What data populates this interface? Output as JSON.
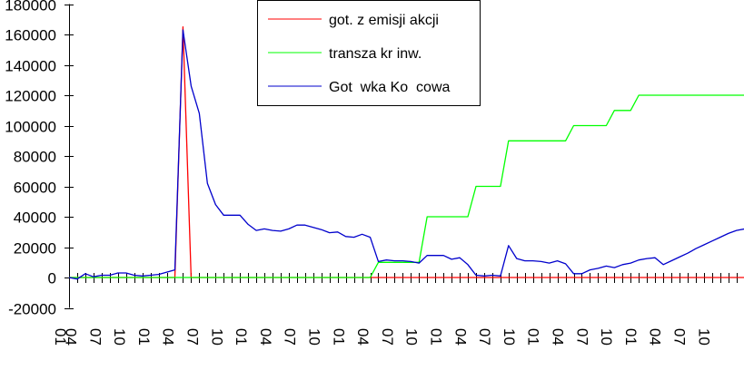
{
  "chart_data": {
    "type": "line",
    "title": "",
    "xlabel": "",
    "ylabel": "",
    "ylim": [
      -20000,
      180000
    ],
    "yticks": [
      180000,
      160000,
      140000,
      120000,
      100000,
      80000,
      60000,
      40000,
      20000,
      0,
      -20000
    ],
    "ytick_labels": [
      "180000",
      "160000",
      "140000",
      "120000",
      "100000",
      "80000",
      "60000",
      "40000",
      "20000",
      "0",
      "-20000"
    ],
    "x_count": 84,
    "xtick_labels": [
      "01",
      "04",
      "07",
      "10",
      "01",
      "04",
      "07",
      "10",
      "01",
      "04",
      "07",
      "10",
      "01",
      "04",
      "07",
      "10",
      "01",
      "04",
      "07",
      "10",
      "01",
      "04",
      "07",
      "10",
      "01",
      "04",
      "07",
      "10"
    ],
    "grid": false,
    "legend_position": "top-center",
    "legend": [
      "got. z emisji akcji",
      "transza kr inw.",
      "Got  wka Ko  cowa"
    ],
    "series": [
      {
        "name": "got. z emisji akcji",
        "color": "#ff0000",
        "values": [
          0,
          0,
          0,
          0,
          0,
          0,
          0,
          0,
          0,
          0,
          0,
          0,
          0,
          0,
          165000,
          0,
          0,
          0,
          0,
          0,
          0,
          0,
          0,
          0,
          0,
          0,
          0,
          0,
          0,
          0,
          0,
          0,
          0,
          0,
          0,
          0,
          0,
          0,
          0,
          0,
          0,
          0,
          0,
          0,
          0,
          0,
          0,
          0,
          0,
          0,
          0,
          0,
          0,
          0,
          0,
          0,
          0,
          0,
          0,
          0,
          0,
          0,
          0,
          0,
          0,
          0,
          0,
          0,
          0,
          0,
          0,
          0,
          0,
          0,
          0,
          0,
          0,
          0,
          0,
          0,
          0,
          0,
          0,
          0
        ]
      },
      {
        "name": "transza kr inw.",
        "color": "#00ff00",
        "values": [
          0,
          0,
          0,
          0,
          0,
          0,
          0,
          0,
          0,
          0,
          0,
          0,
          0,
          0,
          0,
          0,
          0,
          0,
          0,
          0,
          0,
          0,
          0,
          0,
          0,
          0,
          0,
          0,
          0,
          0,
          0,
          0,
          0,
          0,
          0,
          0,
          0,
          0,
          10000,
          10000,
          10000,
          10000,
          10000,
          10000,
          40000,
          40000,
          40000,
          40000,
          40000,
          40000,
          60000,
          60000,
          60000,
          60000,
          90000,
          90000,
          90000,
          90000,
          90000,
          90000,
          90000,
          90000,
          100000,
          100000,
          100000,
          100000,
          100000,
          110000,
          110000,
          110000,
          120000,
          120000,
          120000,
          120000,
          120000,
          120000,
          120000,
          120000,
          120000,
          120000,
          120000,
          120000,
          120000,
          120000
        ]
      },
      {
        "name": "Got  wka Ko  cowa",
        "color": "#0000cc",
        "values": [
          0,
          -1000,
          2500,
          500,
          1500,
          1500,
          3000,
          3000,
          1500,
          1000,
          1500,
          2000,
          3500,
          5000,
          163000,
          126000,
          108000,
          62000,
          48000,
          41000,
          41000,
          41000,
          35000,
          31000,
          32000,
          31000,
          30500,
          32000,
          34500,
          34500,
          33000,
          31500,
          29500,
          30000,
          27000,
          26500,
          28500,
          26500,
          10500,
          11500,
          11000,
          11000,
          10500,
          9500,
          14500,
          14500,
          14500,
          12000,
          13000,
          8500,
          1500,
          1000,
          1500,
          1000,
          21000,
          12500,
          11000,
          11000,
          10500,
          9500,
          11000,
          9000,
          2500,
          2500,
          5000,
          6000,
          7500,
          6500,
          8500,
          9500,
          11500,
          12500,
          13000,
          8500,
          11000,
          13500,
          16000,
          19000,
          21500,
          24000,
          26500,
          29000,
          31000,
          32000
        ]
      }
    ]
  },
  "legend": {
    "items": [
      {
        "label": "got. z emisji akcji",
        "color": "#ff0000"
      },
      {
        "label": "transza kr inw.",
        "color": "#00ff00"
      },
      {
        "label": "Got  wka Ko  cowa",
        "color": "#0000cc"
      }
    ]
  }
}
